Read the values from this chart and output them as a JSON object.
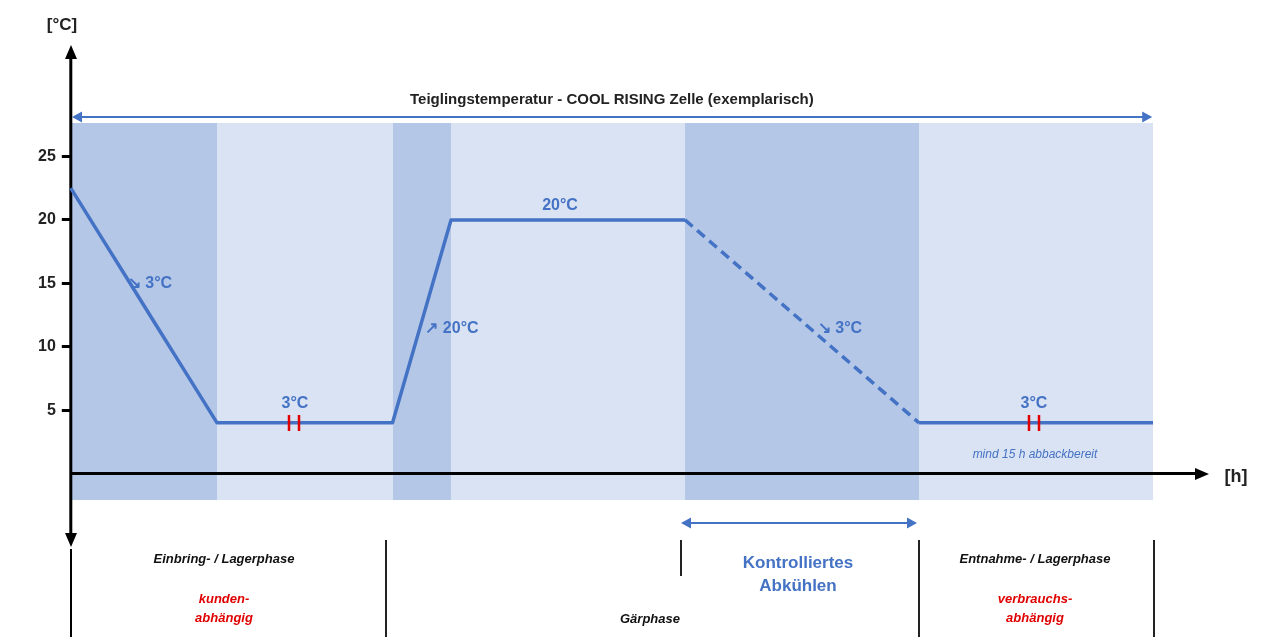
{
  "chart_data": {
    "type": "line",
    "title": "Teiglingstemperatur - COOL RISING Zelle (exemplarisch)",
    "ylabel": "[°C]",
    "categories": [
      null,
      null,
      null,
      null,
      null,
      null,
      null,
      null,
      null,
      null,
      null,
      null,
      null,
      null,
      null,
      null,
      null,
      null,
      null,
      null,
      null,
      null,
      null,
      null,
      null,
      null,
      null,
      null,
      null,
      null,
      null,
      null,
      null,
      null,
      null,
      null,
      null,
      null
    ],
    "series": [
      {
        "color": "#4472c4",
        "line_style": "solid",
        "values": [
          22.5,
          18.8,
          15.1,
          11.4,
          7.7,
          4,
          4,
          4,
          4,
          4,
          4,
          4,
          12,
          20,
          20,
          20,
          20,
          20,
          20,
          20,
          20,
          20,
          null,
          null,
          null,
          null,
          null,
          null,
          null,
          null,
          null,
          null,
          null,
          null,
          null,
          null,
          null,
          null
        ]
      },
      {
        "color": "#4472c4",
        "line_style": "dashed",
        "values": [
          null,
          null,
          null,
          null,
          null,
          null,
          null,
          null,
          null,
          null,
          null,
          null,
          null,
          null,
          null,
          null,
          null,
          null,
          null,
          null,
          null,
          20,
          18,
          16,
          14,
          12,
          10,
          8,
          6,
          4,
          null,
          null,
          null,
          null,
          null,
          null,
          null,
          null
        ]
      },
      {
        "color": "#4472c4",
        "line_style": "solid",
        "values": [
          null,
          null,
          null,
          null,
          null,
          null,
          null,
          null,
          null,
          null,
          null,
          null,
          null,
          null,
          null,
          null,
          null,
          null,
          null,
          null,
          null,
          null,
          null,
          null,
          null,
          null,
          null,
          null,
          null,
          4,
          4,
          4,
          4,
          4,
          4,
          4,
          4,
          4
        ]
      }
    ],
    "ylim": [
      -5,
      33
    ],
    "yticks": [
      5,
      10,
      15,
      20,
      25
    ],
    "tick_labels": "y",
    "grid": false,
    "legend": false,
    "marker": "none",
    "annotations": [
      "↘ 3°C",
      "↗ 20°C",
      "20°C",
      "↘ 3°C",
      "3°C",
      "3°C",
      "mind 15 h abbackbereit",
      "Einbring- / Lagerphase",
      "kunden-\nabhängig",
      "Gärphase",
      "Kontrolliertes\nAbkühlen",
      "Entnahme- / Lagerphase",
      "verbrauchs-\nabhängig",
      "[h]"
    ]
  }
}
